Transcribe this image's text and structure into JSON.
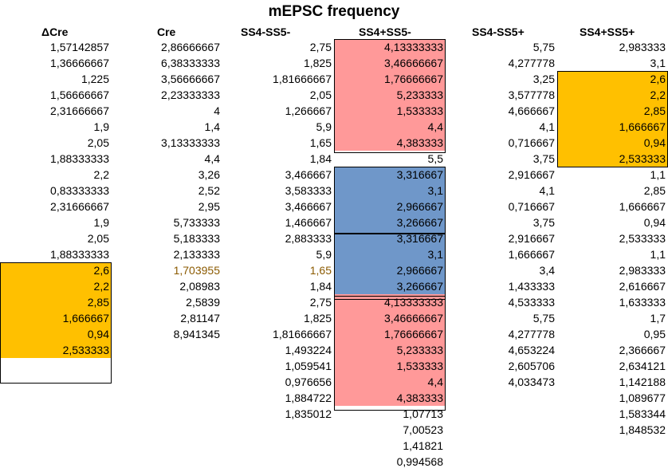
{
  "title": "mEPSC frequency",
  "headers": [
    "ΔCre",
    "Cre",
    "SS4-SS5-",
    "SS4+SS5-",
    "SS4-SS5+",
    "SS4+SS5+"
  ],
  "columns": [
    {
      "name": "delta-cre",
      "values": [
        "1,57142857",
        "1,36666667",
        "1,225",
        "1,56666667",
        "2,31666667",
        "1,9",
        "2,05",
        "1,88333333",
        "2,2",
        "0,83333333",
        "2,31666667",
        "1,9",
        "2,05",
        "1,88333333",
        "2,6",
        "2,2",
        "2,85",
        "1,666667",
        "0,94",
        "2,533333"
      ],
      "highlight": {
        "14": "orange",
        "15": "orange",
        "16": "orange",
        "17": "orange",
        "18": "orange",
        "19": "orange"
      }
    },
    {
      "name": "cre",
      "values": [
        "2,86666667",
        "6,38333333",
        "3,56666667",
        "2,23333333",
        "4",
        "1,4",
        "3,13333333",
        "4,4",
        "3,26",
        "2,52",
        "2,95",
        "5,733333",
        "5,183333",
        "2,133333",
        "1,703955",
        "2,08983",
        "2,5839",
        "2,81147",
        "8,941345"
      ],
      "text_color": {
        "14": "brown"
      }
    },
    {
      "name": "ss4-ss5-minus",
      "values": [
        "2,75",
        "1,825",
        "1,81666667",
        "2,05",
        "1,266667",
        "5,9",
        "1,65",
        "1,84",
        "3,466667",
        "3,583333",
        "3,466667",
        "1,466667",
        "2,883333",
        "5,9",
        "1,65",
        "1,84",
        "2,75",
        "1,825",
        "1,81666667",
        "1,493224",
        "1,059541",
        "0,976656",
        "1,884722",
        "1,835012"
      ],
      "text_color": {
        "14": "brown"
      }
    },
    {
      "name": "ss4-plus-ss5-minus",
      "values": [
        "4,13333333",
        "3,46666667",
        "1,76666667",
        "5,233333",
        "1,533333",
        "4,4",
        "4,383333",
        "5,5",
        "3,316667",
        "3,1",
        "2,966667",
        "3,266667",
        "3,316667",
        "3,1",
        "2,966667",
        "3,266667",
        "4,13333333",
        "3,46666667",
        "1,76666667",
        "5,233333",
        "1,533333",
        "4,4",
        "4,383333",
        "1,07713",
        "7,00523",
        "1,41821",
        "0,994568"
      ],
      "highlight": {
        "0": "pink",
        "1": "pink",
        "2": "pink",
        "3": "pink",
        "4": "pink",
        "5": "pink",
        "6": "pink",
        "8": "blue",
        "9": "blue",
        "10": "blue",
        "11": "blue",
        "12": "blue",
        "13": "blue",
        "14": "blue",
        "15": "blue",
        "16": "pink",
        "17": "pink",
        "18": "pink",
        "19": "pink",
        "20": "pink",
        "21": "pink",
        "22": "pink"
      }
    },
    {
      "name": "ss4-ss5-plus",
      "values": [
        "5,75",
        "4,277778",
        "3,25",
        "3,577778",
        "4,666667",
        "4,1",
        "0,716667",
        "3,75",
        "2,916667",
        "4,1",
        "0,716667",
        "3,75",
        "2,916667",
        "1,666667",
        "3,4",
        "1,433333",
        "4,533333",
        "5,75",
        "4,277778",
        "4,653224",
        "2,605706",
        "4,033473"
      ]
    },
    {
      "name": "ss4-plus-ss5-plus",
      "values": [
        "2,983333",
        "3,1",
        "2,6",
        "2,2",
        "2,85",
        "1,666667",
        "0,94",
        "2,533333",
        "1,1",
        "2,85",
        "1,666667",
        "0,94",
        "2,533333",
        "1,1",
        "2,983333",
        "2,616667",
        "1,633333",
        "1,7",
        "0,95",
        "2,366667",
        "2,634121",
        "1,142188",
        "1,089677",
        "1,583344",
        "1,848532"
      ],
      "highlight": {
        "2": "orange",
        "3": "orange",
        "4": "orange",
        "5": "orange",
        "6": "orange",
        "7": "orange"
      }
    }
  ]
}
